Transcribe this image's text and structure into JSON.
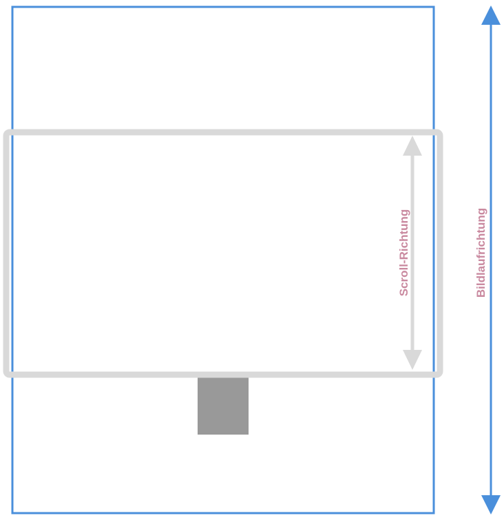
{
  "labels": {
    "scroll_direction": "Scroll-Richtung",
    "image_direction": "Bildlaufrichtung"
  },
  "colors": {
    "image_frame": "#4a8fdb",
    "screen_frame": "#d9d9d9",
    "stand": "#999999",
    "label_text": "#c9899f",
    "scroll_arrow": "#d9d9d9",
    "image_arrow": "#4a8fdb"
  }
}
